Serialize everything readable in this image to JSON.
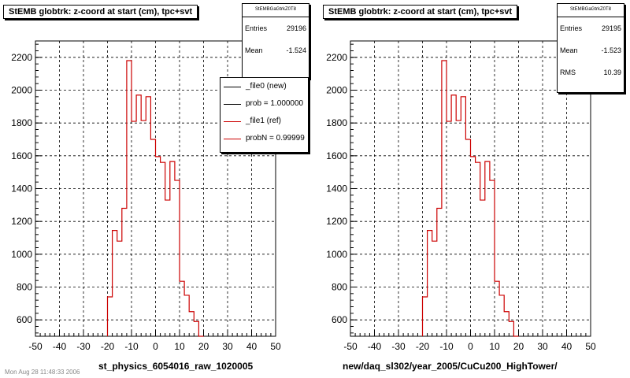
{
  "colors": {
    "hist": "#cc0000",
    "axis": "#000000",
    "grid": "#000000",
    "legend_new": "#000000",
    "legend_ref": "#cc0000"
  },
  "left": {
    "title": "StEMB globtrk: z-coord at start (cm), tpc+svt",
    "stats": {
      "name": "StEMBGaGtrkZ0T8",
      "entries_label": "Entries",
      "entries": "29196",
      "mean_label": "Mean",
      "mean": "-1.524"
    },
    "legend": [
      {
        "label": "_file0 (new)",
        "color": "#000000"
      },
      {
        "label": "prob = 1.000000",
        "color": "#000000"
      },
      {
        "label": "_file1 (ref)",
        "color": "#cc0000"
      },
      {
        "label": "probN = 0.99999",
        "color": "#cc0000"
      }
    ],
    "xcaption": "st_physics_6054016_raw_1020005",
    "footnote": "Mon Aug 28 11:48:33 2006"
  },
  "right": {
    "title": "StEMB globtrk: z-coord at start (cm), tpc+svt",
    "stats": {
      "name": "StEMBGaGtrkZ0T8",
      "entries_label": "Entries",
      "entries": "29195",
      "mean_label": "Mean",
      "mean": "-1.523",
      "rms_label": "RMS",
      "rms": "10.39"
    },
    "xcaption": "new/daq_sl302/year_2005/CuCu200_HighTower/"
  },
  "chart_data": [
    {
      "type": "histogram",
      "xlim": [
        -50,
        50
      ],
      "ylim": [
        500,
        2300
      ],
      "xticks": [
        -50,
        -40,
        -30,
        -20,
        -10,
        0,
        10,
        20,
        30,
        40,
        50
      ],
      "yticks": [
        600,
        800,
        1000,
        1200,
        1400,
        1600,
        1800,
        2000,
        2200
      ],
      "grid": true,
      "bin_width": 2,
      "bin_edges_start": -20,
      "values": [
        740,
        1145,
        1080,
        1280,
        2180,
        1810,
        1970,
        1815,
        1960,
        1700,
        1595,
        1560,
        1330,
        1565,
        1450,
        835,
        750,
        650,
        590,
        500
      ],
      "series": [
        {
          "name": "_file0 (new)",
          "color": "#000000"
        },
        {
          "name": "_file1 (ref)",
          "color": "#cc0000"
        }
      ]
    },
    {
      "type": "histogram",
      "xlim": [
        -50,
        50
      ],
      "ylim": [
        500,
        2300
      ],
      "xticks": [
        -50,
        -40,
        -30,
        -20,
        -10,
        0,
        10,
        20,
        30,
        40,
        50
      ],
      "yticks": [
        600,
        800,
        1000,
        1200,
        1400,
        1600,
        1800,
        2000,
        2200
      ],
      "grid": true,
      "bin_width": 2,
      "bin_edges_start": -20,
      "values": [
        740,
        1145,
        1080,
        1280,
        2180,
        1810,
        1970,
        1815,
        1960,
        1700,
        1595,
        1560,
        1330,
        1565,
        1450,
        835,
        750,
        650,
        590,
        500
      ]
    }
  ]
}
